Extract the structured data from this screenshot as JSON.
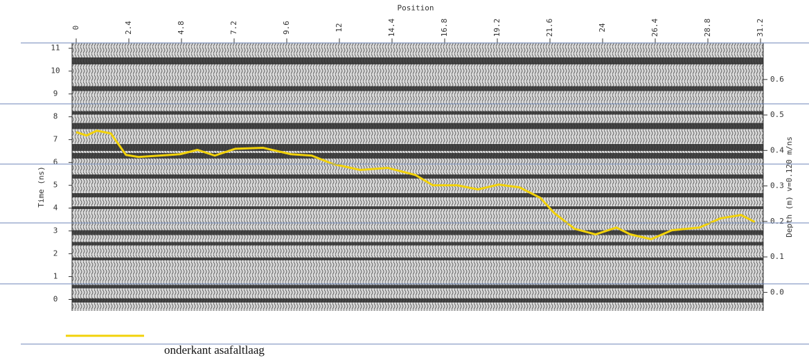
{
  "chart_data": {
    "type": "line",
    "x_label": "Position",
    "y_label": "Time (ns)",
    "y2_label": "Depth (m) v=0.120 m/ns",
    "xlim": [
      0,
      31.2
    ],
    "xticks": [
      0,
      2.4,
      4.8,
      7.2,
      9.6,
      12,
      14.4,
      16.8,
      19.2,
      21.6,
      24,
      26.4,
      28.8,
      31.2
    ],
    "ylim": [
      -0.5,
      11.25
    ],
    "yticks": [
      0,
      1,
      2,
      3,
      4,
      5,
      6,
      7,
      8,
      9,
      10,
      11
    ],
    "y2lim": [
      -0.052,
      0.704
    ],
    "y2ticks": [
      {
        "value": 0,
        "label": "0.0"
      },
      0.1,
      0.2,
      0.3,
      0.4,
      0.5,
      0.6
    ],
    "legend": "bottom-left",
    "series": [
      {
        "name": "onderkant asafaltlaag",
        "color": "#f2d20a",
        "x": [
          0,
          0.47,
          0.95,
          1.58,
          2.27,
          2.84,
          3.79,
          4.74,
          5.53,
          6.32,
          7.26,
          8.53,
          9.79,
          10.74,
          11.68,
          12.95,
          14.21,
          15.47,
          16.26,
          17.37,
          18.32,
          19.26,
          20.21,
          21.16,
          21.79,
          22.73,
          23.68,
          24.63,
          25.26,
          26.21,
          27.16,
          28.42,
          29.37,
          30.31,
          30.94
        ],
        "values": [
          7.33,
          7.18,
          7.39,
          7.27,
          6.33,
          6.24,
          6.3,
          6.36,
          6.55,
          6.3,
          6.6,
          6.64,
          6.36,
          6.3,
          5.94,
          5.67,
          5.76,
          5.45,
          5.0,
          5.0,
          4.82,
          5.03,
          4.91,
          4.45,
          3.79,
          3.09,
          2.85,
          3.15,
          2.85,
          2.64,
          3.03,
          3.15,
          3.55,
          3.7,
          3.39
        ]
      }
    ]
  }
}
